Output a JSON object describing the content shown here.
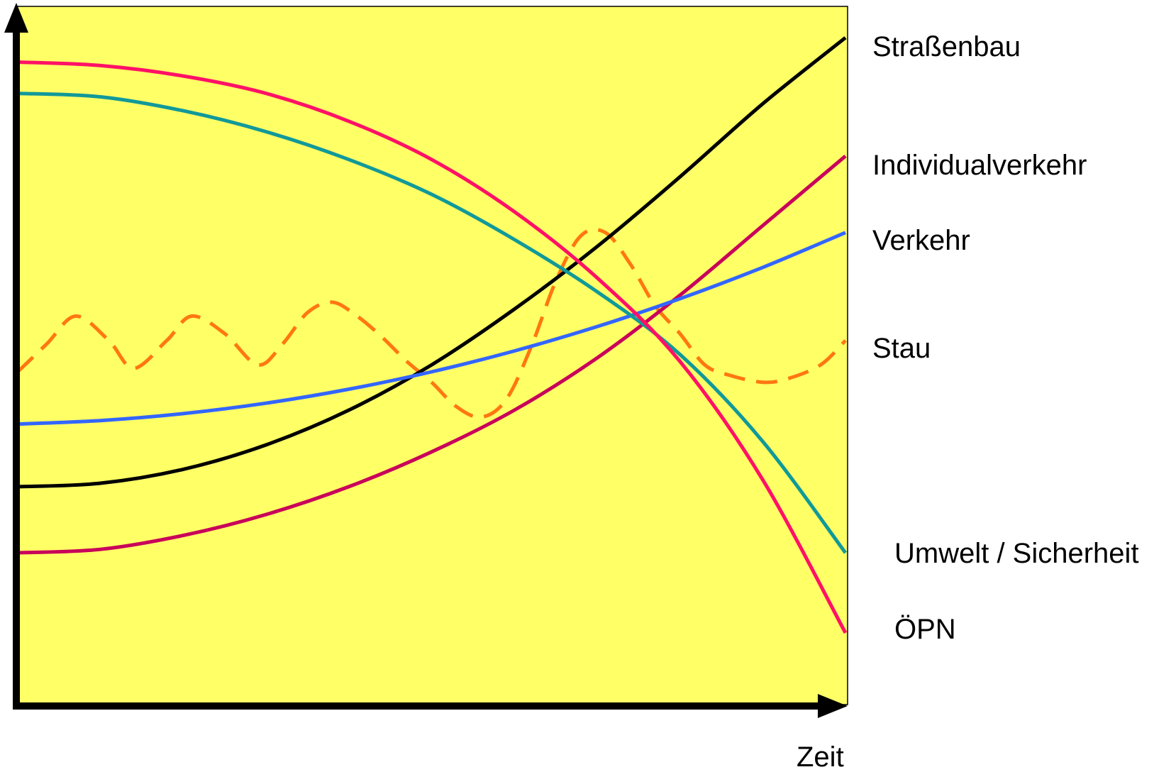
{
  "chart_data": {
    "type": "line",
    "title": "",
    "xlabel": "Zeit",
    "ylabel": "",
    "xlim": [
      0,
      100
    ],
    "ylim": [
      0,
      100
    ],
    "grid": false,
    "legend": "right",
    "plot_background": "#ffff66",
    "series": [
      {
        "name": "Straßenbau",
        "color": "#000000",
        "dashed": false,
        "x": [
          0,
          10,
          20,
          30,
          40,
          50,
          60,
          70,
          80,
          90,
          100
        ],
        "y": [
          31,
          31.5,
          33.5,
          37,
          42,
          48.5,
          56.5,
          65.5,
          75.5,
          86,
          95.5
        ]
      },
      {
        "name": "Individualverkehr",
        "color": "#c8005a",
        "dashed": false,
        "x": [
          0,
          10,
          20,
          30,
          40,
          50,
          60,
          70,
          80,
          90,
          100
        ],
        "y": [
          21.5,
          22,
          24,
          27,
          31,
          36,
          42,
          49.5,
          58.5,
          68.5,
          78.5
        ]
      },
      {
        "name": "Verkehr",
        "color": "#3366ff",
        "dashed": false,
        "x": [
          0,
          10,
          20,
          30,
          40,
          50,
          60,
          70,
          80,
          90,
          100
        ],
        "y": [
          40,
          40.5,
          41.5,
          43,
          45,
          47.5,
          50.5,
          54,
          58,
          62.5,
          67.5
        ]
      },
      {
        "name": "Stau",
        "color": "#ff7711",
        "dashed": true,
        "x": [
          0,
          3.5,
          7,
          11,
          14,
          18,
          21,
          25,
          29,
          32,
          35,
          38,
          41,
          44,
          47,
          50,
          53,
          56,
          59,
          62,
          65,
          68,
          71,
          74,
          77,
          80,
          83,
          86,
          90,
          93,
          97,
          100
        ],
        "y": [
          47.5,
          51.5,
          55.5,
          52,
          48,
          52,
          55.5,
          53,
          48.5,
          51.5,
          56,
          57.5,
          55.5,
          52.5,
          49,
          46,
          42.5,
          41,
          43.5,
          51,
          60.5,
          67,
          67.5,
          63,
          57,
          53,
          48.5,
          47,
          46,
          46.5,
          48.5,
          52
        ]
      },
      {
        "name": "Umwelt / Sicherheit",
        "color": "#119999",
        "dashed": false,
        "x": [
          0,
          10,
          20,
          30,
          40,
          50,
          60,
          70,
          80,
          90,
          100
        ],
        "y": [
          87.5,
          87,
          85,
          82,
          78,
          73,
          66.5,
          59,
          50,
          37.5,
          21.5
        ]
      },
      {
        "name": "ÖPN",
        "color": "#ff1166",
        "dashed": false,
        "x": [
          0,
          10,
          20,
          30,
          40,
          50,
          60,
          70,
          80,
          90,
          100
        ],
        "y": [
          92,
          91.5,
          90,
          87.5,
          83.5,
          78,
          70.5,
          61,
          49,
          32,
          10
        ]
      }
    ]
  }
}
